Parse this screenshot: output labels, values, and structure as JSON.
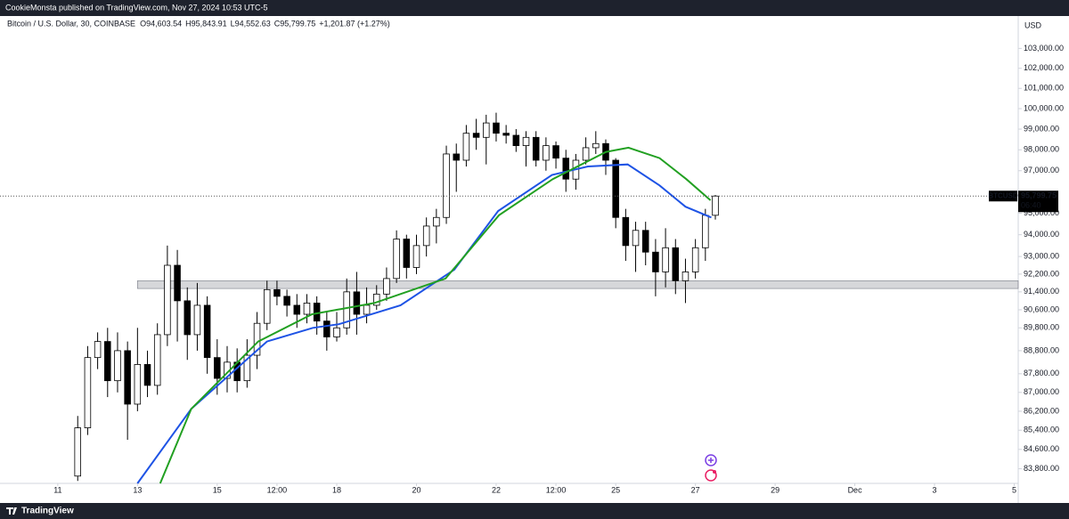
{
  "header": {
    "publisher": "CookieMonsta published on TradingView.com, Nov 27, 2024 10:53 UTC-5",
    "brand": "TradingView"
  },
  "chart_data": {
    "type": "candlestick",
    "symbol": "Bitcoin / U.S. Dollar, 30, COINBASE",
    "ohlc_text": [
      "O94,603.54",
      "H95,843.91",
      "L94,552.63",
      "C95,799.75",
      "+1,201.87 (+1.27%)"
    ],
    "currency": "USD",
    "log_scale": true,
    "grid": false,
    "up_color": "#ffffff",
    "down_color": "#000000",
    "x": [
      0.5,
      0.75,
      1,
      1.25,
      1.5,
      1.75,
      2,
      2.25,
      2.5,
      2.75,
      3,
      3.25,
      3.5,
      3.75,
      4,
      4.25,
      4.5,
      4.75,
      5,
      5.25,
      5.5,
      5.75,
      6,
      6.25,
      6.5,
      6.75,
      7,
      7.25,
      7.5,
      7.75,
      8,
      8.25,
      8.5,
      8.75,
      9,
      9.25,
      9.5,
      9.75,
      10,
      10.25,
      10.5,
      10.75,
      11,
      11.25,
      11.5,
      11.75,
      12,
      12.25,
      12.5,
      12.75,
      13,
      13.25,
      13.5,
      13.75,
      14,
      14.25,
      14.5,
      14.75,
      15,
      15.25,
      15.5,
      15.75,
      16,
      16.25,
      16.5
    ],
    "open": [
      83500,
      85500,
      88500,
      89200,
      87500,
      88800,
      86500,
      88200,
      87300,
      89500,
      92600,
      91000,
      89500,
      90800,
      88500,
      87600,
      88300,
      87500,
      88600,
      90000,
      91500,
      91200,
      90800,
      90400,
      90900,
      90100,
      89400,
      89800,
      91400,
      90400,
      90800,
      91300,
      92000,
      93800,
      92500,
      93500,
      94400,
      94800,
      97800,
      97500,
      98800,
      98600,
      99300,
      98800,
      98700,
      98200,
      98600,
      97500,
      98200,
      97600,
      96600,
      97500,
      98100,
      98300,
      97500,
      94800,
      93500,
      94200,
      93200,
      92300,
      93400,
      91900,
      92300,
      93400,
      94900
    ],
    "high": [
      86000,
      89000,
      89600,
      89800,
      89600,
      89200,
      89800,
      88800,
      90000,
      93500,
      93300,
      91600,
      91800,
      91200,
      89300,
      89000,
      88900,
      89300,
      90500,
      91900,
      91900,
      91500,
      91300,
      91300,
      91200,
      90500,
      90500,
      92000,
      92300,
      91600,
      91700,
      92500,
      94200,
      94000,
      94000,
      94800,
      95200,
      98200,
      98300,
      99200,
      99500,
      99700,
      99800,
      99200,
      99000,
      98900,
      98900,
      98600,
      98400,
      98000,
      97800,
      98600,
      98900,
      98500,
      97600,
      95200,
      94600,
      94600,
      93800,
      94300,
      93800,
      92900,
      93800,
      95200,
      95850
    ],
    "low": [
      83300,
      85200,
      88000,
      86800,
      87000,
      85000,
      86200,
      86800,
      86900,
      89000,
      89200,
      88400,
      88800,
      87800,
      86900,
      87000,
      87000,
      87200,
      88000,
      89700,
      90800,
      90300,
      89800,
      90000,
      89500,
      88800,
      89200,
      89500,
      89500,
      90000,
      90600,
      91000,
      91800,
      92000,
      92200,
      93000,
      93600,
      94500,
      96000,
      97200,
      98000,
      97300,
      98400,
      98300,
      97900,
      97200,
      97200,
      97000,
      97100,
      96000,
      96100,
      97300,
      97800,
      96800,
      94300,
      92800,
      92300,
      92600,
      91200,
      91600,
      91300,
      90900,
      92000,
      92800,
      94700
    ],
    "close": [
      85500,
      88500,
      89200,
      87500,
      88800,
      86500,
      88200,
      87300,
      89500,
      92600,
      91000,
      89500,
      90800,
      88500,
      87600,
      88300,
      87500,
      88600,
      90000,
      91500,
      91200,
      90800,
      90400,
      90900,
      90100,
      89400,
      89800,
      91400,
      90400,
      90800,
      91300,
      92000,
      93800,
      92500,
      93500,
      94400,
      94800,
      97800,
      97500,
      98800,
      98600,
      99300,
      98800,
      98700,
      98200,
      98600,
      97500,
      98200,
      97600,
      96600,
      97500,
      98100,
      98300,
      97500,
      94800,
      93500,
      94200,
      93200,
      92300,
      93400,
      91900,
      92300,
      93400,
      94900,
      95799.75
    ],
    "series": [
      {
        "color": "#1e53e5",
        "x": [
          2.0,
          3.35,
          5.25,
          6.4,
          7.05,
          8.6,
          9.95,
          11.05,
          12.4,
          13.3,
          14.3,
          15.1,
          15.75,
          16.4
        ],
        "values": [
          83200,
          86300,
          89200,
          89800,
          89960,
          90800,
          92400,
          95100,
          96800,
          97200,
          97300,
          96300,
          95300,
          94800
        ]
      },
      {
        "color": "#22a022",
        "x": [
          2.57,
          3.35,
          5.03,
          6.38,
          7.94,
          9.73,
          11.07,
          12.42,
          13.76,
          14.32,
          15.1,
          15.77,
          16.38
        ],
        "values": [
          83200,
          86300,
          89200,
          90400,
          90900,
          92000,
          94900,
          96600,
          97900,
          98100,
          97600,
          96600,
          95600
        ]
      }
    ],
    "zone": {
      "from": 2.0,
      "range": [
        91550,
        91900
      ]
    },
    "last_price": {
      "value": 95799.75,
      "label": "95,799.75"
    },
    "symbol_tag": "BTCUSD",
    "countdown": "06:40",
    "xlim": [
      -1.45,
      24.1
    ],
    "ylim": [
      83200,
      104650
    ],
    "xticks": [
      {
        "value": 0,
        "label": "11"
      },
      {
        "value": 2,
        "label": "13"
      },
      {
        "value": 4,
        "label": "15"
      },
      {
        "value": 5.5,
        "label": "12:00"
      },
      {
        "value": 7,
        "label": "18"
      },
      {
        "value": 9,
        "label": "20"
      },
      {
        "value": 11,
        "label": "22"
      },
      {
        "value": 12.5,
        "label": "12:00"
      },
      {
        "value": 14,
        "label": "25"
      },
      {
        "value": 16,
        "label": "27"
      },
      {
        "value": 18,
        "label": "29"
      },
      {
        "value": 20,
        "label": "Dec"
      },
      {
        "value": 22,
        "label": "3"
      },
      {
        "value": 24,
        "label": "5"
      }
    ],
    "yticks": [
      {
        "value": 103000,
        "label": "103,000.00"
      },
      {
        "value": 102000,
        "label": "102,000.00"
      },
      {
        "value": 101000,
        "label": "101,000.00"
      },
      {
        "value": 100000,
        "label": "100,000.00"
      },
      {
        "value": 99000,
        "label": "99,000.00"
      },
      {
        "value": 98000,
        "label": "98,000.00"
      },
      {
        "value": 97000,
        "label": "97,000.00"
      },
      {
        "value": 95000,
        "label": "95,000.00"
      },
      {
        "value": 94000,
        "label": "94,000.00"
      },
      {
        "value": 93000,
        "label": "93,000.00"
      },
      {
        "value": 92200,
        "label": "92,200.00"
      },
      {
        "value": 91400,
        "label": "91,400.00"
      },
      {
        "value": 90600,
        "label": "90,600.00"
      },
      {
        "value": 89800,
        "label": "89,800.00"
      },
      {
        "value": 88800,
        "label": "88,800.00"
      },
      {
        "value": 87800,
        "label": "87,800.00"
      },
      {
        "value": 87000,
        "label": "87,000.00"
      },
      {
        "value": 86200,
        "label": "86,200.00"
      },
      {
        "value": 85400,
        "label": "85,400.00"
      },
      {
        "value": 84600,
        "label": "84,600.00"
      },
      {
        "value": 83800,
        "label": "83,800.00"
      }
    ]
  }
}
